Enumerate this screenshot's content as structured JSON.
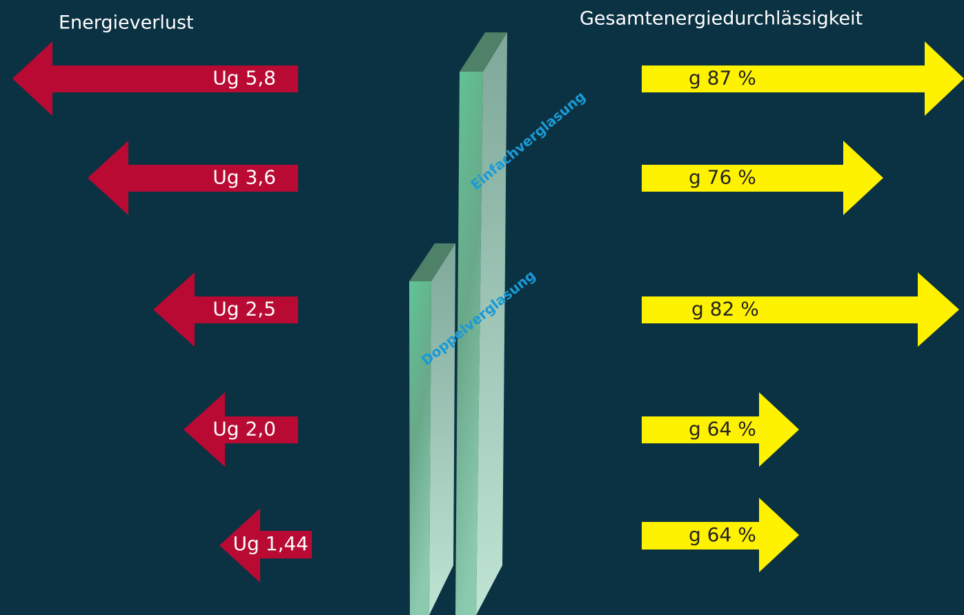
{
  "header": {
    "left_title": "Energieverlust",
    "right_title": "Gesamtenergiedurchlässigkeit"
  },
  "loss_arrows": [
    {
      "label": "Ug 5,8"
    },
    {
      "label": "Ug 3,6"
    },
    {
      "label": "Ug 2,5"
    },
    {
      "label": "Ug 2,0"
    },
    {
      "label": "Ug 1,44"
    }
  ],
  "gain_arrows": [
    {
      "label": "g 87 %"
    },
    {
      "label": "g 76 %"
    },
    {
      "label": "g 82 %"
    },
    {
      "label": "g 64 %"
    },
    {
      "label": "g 64 %"
    }
  ],
  "glass": [
    {
      "label": "Einfachverglasung"
    },
    {
      "label": "Doppelverglasung"
    }
  ]
}
